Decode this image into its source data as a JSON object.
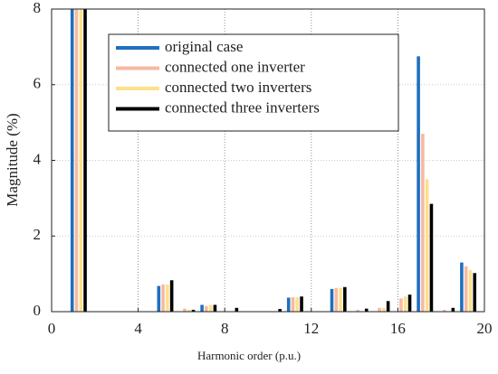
{
  "chart_data": {
    "type": "bar",
    "xlabel": "Harmonic order (p.u.)",
    "ylabel": "Magnitude (%)",
    "x": [
      1,
      2,
      3,
      4,
      5,
      6,
      7,
      8,
      9,
      10,
      11,
      12,
      13,
      14,
      15,
      16,
      17,
      18,
      19
    ],
    "series": [
      {
        "name": "original case",
        "color": "#1f6fbf",
        "values": [
          8,
          0,
          0,
          0,
          0.68,
          0,
          0.18,
          0,
          0,
          0,
          0.37,
          0,
          0.6,
          0,
          0,
          0,
          6.75,
          0,
          1.3
        ]
      },
      {
        "name": "connected one inverter",
        "color": "#f7b9a0",
        "values": [
          8,
          0,
          0,
          0,
          0.72,
          0.08,
          0.15,
          0,
          0,
          0,
          0.38,
          0,
          0.62,
          0.05,
          0.1,
          0.35,
          4.7,
          0.05,
          1.2
        ]
      },
      {
        "name": "connected two inverters",
        "color": "#ffe08a",
        "values": [
          8,
          0,
          0,
          0,
          0.72,
          0.05,
          0.18,
          0,
          0,
          0,
          0.38,
          0,
          0.63,
          0,
          0.1,
          0.4,
          3.5,
          0,
          1.1
        ]
      },
      {
        "name": "connected three inverters",
        "color": "#000000",
        "values": [
          8,
          0,
          0,
          0,
          0.83,
          0.05,
          0.18,
          0.1,
          0,
          0.07,
          0.4,
          0,
          0.65,
          0.08,
          0.28,
          0.45,
          2.85,
          0.1,
          1.02
        ]
      }
    ],
    "xlim": [
      0,
      20
    ],
    "xticks": [
      0,
      4,
      8,
      12,
      16,
      20
    ],
    "ylim": [
      0,
      8
    ],
    "yticks": [
      0,
      2,
      4,
      6,
      8
    ],
    "grid": true,
    "legend": "top"
  }
}
